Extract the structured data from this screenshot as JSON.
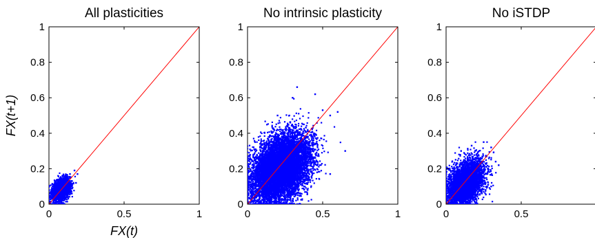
{
  "chart_data": [
    {
      "type": "scatter",
      "title": "All plasticities",
      "xlabel": "FX(t)",
      "ylabel": "FX(t+1)",
      "xlim": [
        0,
        1
      ],
      "ylim": [
        0,
        1
      ],
      "xticks": [
        "0",
        "0.5",
        "1"
      ],
      "yticks": [
        "0",
        "0.2",
        "0.4",
        "0.6",
        "0.8",
        "1"
      ],
      "grid": false,
      "reference_line": {
        "x": [
          0,
          1
        ],
        "y": [
          0,
          1
        ],
        "color": "#ff0000"
      },
      "series": [
        {
          "color": "#0000ff",
          "cloud": {
            "x_range": [
              0.0,
              0.2
            ],
            "y_range": [
              0.0,
              0.2
            ],
            "center": [
              0.08,
              0.08
            ],
            "spread": [
              0.03,
              0.03
            ],
            "n_points": 2000
          },
          "points": [
            [
              0.0,
              0.02
            ],
            [
              0.02,
              0.07
            ],
            [
              0.05,
              0.1
            ],
            [
              0.08,
              0.13
            ],
            [
              0.11,
              0.16
            ],
            [
              0.14,
              0.17
            ],
            [
              0.17,
              0.19
            ],
            [
              0.19,
              0.17
            ],
            [
              0.18,
              0.12
            ],
            [
              0.15,
              0.07
            ],
            [
              0.12,
              0.04
            ],
            [
              0.1,
              0.06
            ]
          ]
        }
      ]
    },
    {
      "type": "scatter",
      "title": "No intrinsic plasticity",
      "xlabel": "",
      "ylabel": "",
      "xlim": [
        0,
        1
      ],
      "ylim": [
        0,
        1
      ],
      "xticks": [
        "0",
        "0.5",
        "1"
      ],
      "yticks": [
        "0",
        "0.2",
        "0.4",
        "0.6",
        "0.8",
        "1"
      ],
      "grid": false,
      "reference_line": {
        "x": [
          0,
          1
        ],
        "y": [
          0,
          1
        ],
        "color": "#ff0000"
      },
      "series": [
        {
          "color": "#0000ff",
          "cloud": {
            "x_range": [
              0.0,
              0.66
            ],
            "y_range": [
              0.0,
              0.66
            ],
            "center": [
              0.22,
              0.2
            ],
            "spread": [
              0.1,
              0.09
            ],
            "n_points": 9000
          },
          "points": [
            [
              0.0,
              0.05
            ],
            [
              0.05,
              0.35
            ],
            [
              0.2,
              0.5
            ],
            [
              0.3,
              0.6
            ],
            [
              0.33,
              0.66
            ],
            [
              0.45,
              0.62
            ],
            [
              0.5,
              0.53
            ],
            [
              0.55,
              0.5
            ],
            [
              0.6,
              0.52
            ],
            [
              0.65,
              0.3
            ],
            [
              0.55,
              0.17
            ],
            [
              0.4,
              0.08
            ],
            [
              0.3,
              0.02
            ]
          ]
        }
      ]
    },
    {
      "type": "scatter",
      "title": "No iSTDP",
      "xlabel": "",
      "ylabel": "",
      "xlim": [
        0,
        1
      ],
      "ylim": [
        0,
        1
      ],
      "xticks": [
        "0",
        "0.5"
      ],
      "yticks": [
        "0",
        "0.2",
        "0.4",
        "0.6",
        "0.8",
        "1"
      ],
      "grid": false,
      "reference_line": {
        "x": [
          0,
          1
        ],
        "y": [
          0,
          1
        ],
        "color": "#ff0000"
      },
      "series": [
        {
          "color": "#0000ff",
          "cloud": {
            "x_range": [
              0.0,
              0.36
            ],
            "y_range": [
              0.0,
              0.35
            ],
            "center": [
              0.13,
              0.12
            ],
            "spread": [
              0.06,
              0.06
            ],
            "n_points": 4000
          },
          "points": [
            [
              0.0,
              0.01
            ],
            [
              0.02,
              0.2
            ],
            [
              0.1,
              0.3
            ],
            [
              0.17,
              0.33
            ],
            [
              0.25,
              0.35
            ],
            [
              0.3,
              0.32
            ],
            [
              0.33,
              0.24
            ],
            [
              0.35,
              0.22
            ],
            [
              0.3,
              0.1
            ],
            [
              0.2,
              0.03
            ]
          ]
        }
      ]
    }
  ]
}
